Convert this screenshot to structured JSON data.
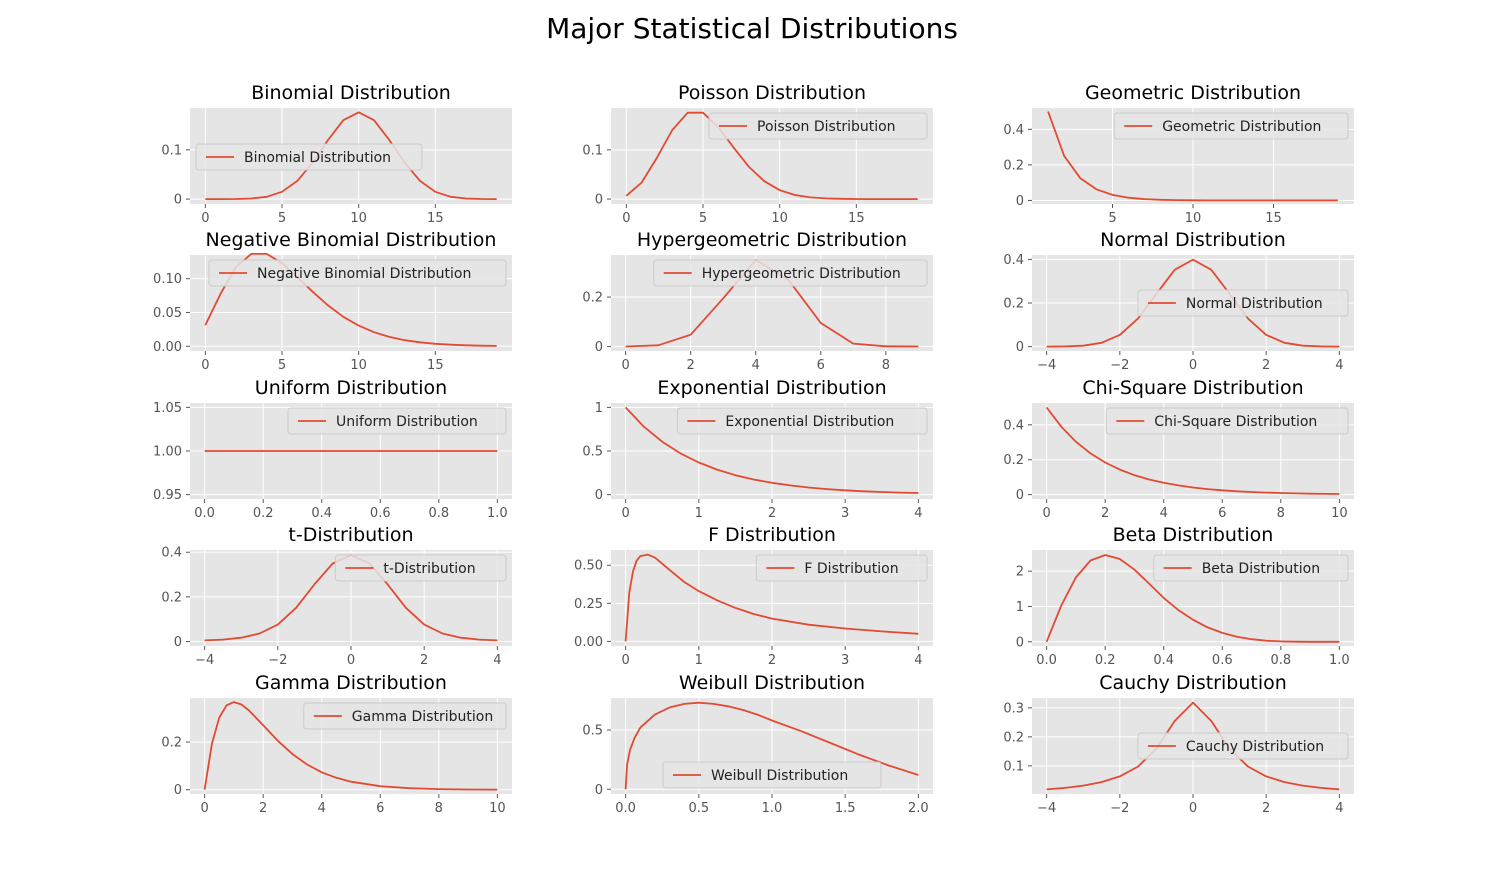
{
  "figure": {
    "title": "Major Statistical Distributions"
  },
  "style": {
    "panel_bg": "#e5e5e5",
    "grid": "#ffffff",
    "line": "#e24a33",
    "tick_text": "#555555",
    "legend_bg": "#e5e5e5",
    "legend_border": "#cccccc"
  },
  "chart_data": [
    {
      "type": "line",
      "title": "Binomial Distribution",
      "legend": "top-left",
      "xlim": [
        -1,
        20
      ],
      "ylim": [
        -0.01,
        0.185
      ],
      "xticks": [
        0,
        5,
        10,
        15
      ],
      "yticks": [
        0.0,
        0.1
      ],
      "series": [
        {
          "name": "Binomial Distribution",
          "x": [
            0,
            1,
            2,
            3,
            4,
            5,
            6,
            7,
            8,
            9,
            10,
            11,
            12,
            13,
            14,
            15,
            16,
            17,
            18,
            19
          ],
          "y": [
            0.0,
            0.0,
            0.0002,
            0.0011,
            0.0046,
            0.0148,
            0.037,
            0.0739,
            0.1201,
            0.1602,
            0.1762,
            0.1602,
            0.1201,
            0.0739,
            0.037,
            0.0148,
            0.0046,
            0.0011,
            0.0002,
            0.0
          ]
        }
      ]
    },
    {
      "type": "line",
      "title": "Poisson Distribution",
      "legend": "top-right",
      "xlim": [
        -1,
        20
      ],
      "ylim": [
        -0.01,
        0.185
      ],
      "xticks": [
        0,
        5,
        10,
        15
      ],
      "yticks": [
        0.0,
        0.1
      ],
      "series": [
        {
          "name": "Poisson Distribution",
          "x": [
            0,
            1,
            2,
            3,
            4,
            5,
            6,
            7,
            8,
            9,
            10,
            11,
            12,
            13,
            14,
            15,
            16,
            17,
            18,
            19
          ],
          "y": [
            0.0067,
            0.0337,
            0.0842,
            0.1404,
            0.1755,
            0.1755,
            0.1462,
            0.1044,
            0.0653,
            0.0363,
            0.0181,
            0.0082,
            0.0034,
            0.0013,
            0.0005,
            0.0002,
            0.0,
            0.0,
            0.0,
            0.0
          ]
        }
      ]
    },
    {
      "type": "line",
      "title": "Geometric Distribution",
      "legend": "top-right",
      "xlim": [
        0,
        20
      ],
      "ylim": [
        -0.02,
        0.52
      ],
      "xticks": [
        5,
        10,
        15
      ],
      "yticks": [
        0.0,
        0.2,
        0.4
      ],
      "series": [
        {
          "name": "Geometric Distribution",
          "x": [
            1,
            2,
            3,
            4,
            5,
            6,
            7,
            8,
            9,
            10,
            11,
            12,
            13,
            14,
            15,
            16,
            17,
            18,
            19
          ],
          "y": [
            0.5,
            0.25,
            0.125,
            0.0625,
            0.0313,
            0.0156,
            0.0078,
            0.0039,
            0.002,
            0.001,
            0.0005,
            0.0002,
            0.0001,
            0.0,
            0.0,
            0.0,
            0.0,
            0.0,
            0.0
          ]
        }
      ]
    },
    {
      "type": "line",
      "title": "Negative Binomial Distribution",
      "legend": "top-right",
      "xlim": [
        -1,
        20
      ],
      "ylim": [
        -0.007,
        0.135
      ],
      "xticks": [
        0,
        5,
        10,
        15
      ],
      "yticks": [
        0.0,
        0.05,
        0.1
      ],
      "ytick_labels": [
        "0.00",
        "0.05",
        "0.10"
      ],
      "series": [
        {
          "name": "Negative Binomial Distribution",
          "x": [
            0,
            1,
            2,
            3,
            4,
            5,
            6,
            7,
            8,
            9,
            10,
            11,
            12,
            13,
            14,
            15,
            16,
            17,
            18,
            19
          ],
          "y": [
            0.0312,
            0.0781,
            0.1172,
            0.1367,
            0.1367,
            0.123,
            0.1025,
            0.0806,
            0.0604,
            0.0436,
            0.0305,
            0.0208,
            0.0139,
            0.009,
            0.0058,
            0.0037,
            0.0023,
            0.0014,
            0.0009,
            0.0005
          ]
        }
      ]
    },
    {
      "type": "line",
      "title": "Hypergeometric Distribution",
      "legend": "top-right",
      "xlim": [
        -0.45,
        9.45
      ],
      "ylim": [
        -0.018,
        0.37
      ],
      "xticks": [
        0,
        2,
        4,
        6,
        8
      ],
      "yticks": [
        0.0,
        0.2
      ],
      "series": [
        {
          "name": "Hypergeometric Distribution",
          "x": [
            0,
            1,
            2,
            3,
            4,
            5,
            6,
            7,
            8,
            9
          ],
          "y": [
            0.0,
            0.005,
            0.048,
            0.195,
            0.35,
            0.27,
            0.095,
            0.012,
            0.001,
            0.0
          ]
        }
      ]
    },
    {
      "type": "line",
      "title": "Normal Distribution",
      "legend": "center-right",
      "xlim": [
        -4.4,
        4.4
      ],
      "ylim": [
        -0.02,
        0.42
      ],
      "xticks": [
        -4,
        -2,
        0,
        2,
        4
      ],
      "yticks": [
        0.0,
        0.2,
        0.4
      ],
      "xtick_labels": [
        "−4",
        "−2",
        "0",
        "2",
        "4"
      ],
      "series": [
        {
          "name": "Normal Distribution",
          "x": [
            -4,
            -3.5,
            -3,
            -2.5,
            -2,
            -1.5,
            -1,
            -0.5,
            0,
            0.5,
            1,
            1.5,
            2,
            2.5,
            3,
            3.5,
            4
          ],
          "y": [
            0.0001,
            0.0009,
            0.0044,
            0.0175,
            0.054,
            0.1295,
            0.242,
            0.3521,
            0.3989,
            0.3521,
            0.242,
            0.1295,
            0.054,
            0.0175,
            0.0044,
            0.0009,
            0.0001
          ]
        }
      ]
    },
    {
      "type": "line",
      "title": "Uniform Distribution",
      "legend": "top-right",
      "xlim": [
        -0.05,
        1.05
      ],
      "ylim": [
        0.945,
        1.055
      ],
      "xticks": [
        0,
        0.2,
        0.4,
        0.6,
        0.8,
        1
      ],
      "yticks": [
        0.95,
        1.0,
        1.05
      ],
      "xtick_labels": [
        "0.0",
        "0.2",
        "0.4",
        "0.6",
        "0.8",
        "1.0"
      ],
      "ytick_labels": [
        "0.95",
        "1.00",
        "1.05"
      ],
      "series": [
        {
          "name": "Uniform Distribution",
          "x": [
            0,
            1
          ],
          "y": [
            1,
            1
          ]
        }
      ]
    },
    {
      "type": "line",
      "title": "Exponential Distribution",
      "legend": "top-right",
      "xlim": [
        -0.2,
        4.2
      ],
      "ylim": [
        -0.05,
        1.05
      ],
      "xticks": [
        0,
        1,
        2,
        3,
        4
      ],
      "yticks": [
        0.0,
        0.5,
        1.0
      ],
      "series": [
        {
          "name": "Exponential Distribution",
          "x": [
            0,
            0.25,
            0.5,
            0.75,
            1,
            1.25,
            1.5,
            1.75,
            2,
            2.25,
            2.5,
            2.75,
            3,
            3.25,
            3.5,
            3.75,
            4
          ],
          "y": [
            1.0,
            0.7788,
            0.6065,
            0.4724,
            0.3679,
            0.2865,
            0.2231,
            0.1738,
            0.1353,
            0.1054,
            0.0821,
            0.0639,
            0.0498,
            0.0388,
            0.0302,
            0.0235,
            0.0183
          ]
        }
      ]
    },
    {
      "type": "line",
      "title": "Chi-Square Distribution",
      "legend": "top-right",
      "xlim": [
        -0.5,
        10.5
      ],
      "ylim": [
        -0.025,
        0.525
      ],
      "xticks": [
        0,
        2,
        4,
        6,
        8,
        10
      ],
      "yticks": [
        0.0,
        0.2,
        0.4
      ],
      "series": [
        {
          "name": "Chi-Square Distribution",
          "x": [
            0,
            0.5,
            1,
            1.5,
            2,
            2.5,
            3,
            3.5,
            4,
            4.5,
            5,
            5.5,
            6,
            6.5,
            7,
            7.5,
            8,
            8.5,
            9,
            9.5,
            10
          ],
          "y": [
            0.5,
            0.3894,
            0.3033,
            0.2362,
            0.1839,
            0.1433,
            0.1116,
            0.0869,
            0.0677,
            0.0527,
            0.041,
            0.032,
            0.0249,
            0.0194,
            0.0151,
            0.0118,
            0.0092,
            0.0071,
            0.0056,
            0.0043,
            0.0034
          ]
        }
      ]
    },
    {
      "type": "line",
      "title": "t-Distribution",
      "legend": "top-right",
      "xlim": [
        -4.4,
        4.4
      ],
      "ylim": [
        -0.02,
        0.41
      ],
      "xticks": [
        -4,
        -2,
        0,
        2,
        4
      ],
      "yticks": [
        0.0,
        0.2,
        0.4
      ],
      "xtick_labels": [
        "−4",
        "−2",
        "0",
        "2",
        "4"
      ],
      "series": [
        {
          "name": "t-Distribution",
          "x": [
            -4,
            -3.5,
            -3,
            -2.5,
            -2,
            -1.5,
            -1,
            -0.5,
            0,
            0.5,
            1,
            1.5,
            2,
            2.5,
            3,
            3.5,
            4
          ],
          "y": [
            0.0051,
            0.0087,
            0.0173,
            0.0361,
            0.0759,
            0.1513,
            0.2561,
            0.3495,
            0.3873,
            0.3495,
            0.2561,
            0.1513,
            0.0759,
            0.0361,
            0.0173,
            0.0087,
            0.0051
          ]
        }
      ]
    },
    {
      "type": "line",
      "title": "F Distribution",
      "legend": "top-right",
      "xlim": [
        -0.2,
        4.2
      ],
      "ylim": [
        -0.03,
        0.6
      ],
      "xticks": [
        0,
        1,
        2,
        3,
        4
      ],
      "yticks": [
        0.0,
        0.25,
        0.5
      ],
      "ytick_labels": [
        "0.00",
        "0.25",
        "0.50"
      ],
      "series": [
        {
          "name": "F Distribution",
          "x": [
            0,
            0.05,
            0.1,
            0.15,
            0.2,
            0.3,
            0.4,
            0.5,
            0.6,
            0.8,
            1,
            1.25,
            1.5,
            1.75,
            2,
            2.5,
            3,
            3.5,
            4
          ],
          "y": [
            0,
            0.32,
            0.46,
            0.53,
            0.56,
            0.57,
            0.55,
            0.51,
            0.47,
            0.39,
            0.33,
            0.27,
            0.22,
            0.18,
            0.15,
            0.11,
            0.085,
            0.066,
            0.05
          ]
        }
      ]
    },
    {
      "type": "line",
      "title": "Beta Distribution",
      "legend": "top-right",
      "xlim": [
        -0.05,
        1.05
      ],
      "ylim": [
        -0.12,
        2.6
      ],
      "xticks": [
        0,
        0.2,
        0.4,
        0.6,
        0.8,
        1
      ],
      "yticks": [
        0,
        1,
        2
      ],
      "xtick_labels": [
        "0.0",
        "0.2",
        "0.4",
        "0.6",
        "0.8",
        "1.0"
      ],
      "series": [
        {
          "name": "Beta Distribution",
          "x": [
            0,
            0.05,
            0.1,
            0.15,
            0.2,
            0.25,
            0.3,
            0.35,
            0.4,
            0.45,
            0.5,
            0.55,
            0.6,
            0.65,
            0.7,
            0.75,
            0.8,
            0.85,
            0.9,
            0.95,
            1
          ],
          "y": [
            0,
            1.0288,
            1.8225,
            2.303,
            2.4576,
            2.3438,
            2.0412,
            1.6479,
            1.2442,
            0.8985,
            0.625,
            0.4084,
            0.2519,
            0.1436,
            0.0729,
            0.0312,
            0.0101,
            0.002,
            0.0001,
            0.0,
            0
          ]
        }
      ]
    },
    {
      "type": "line",
      "title": "Gamma Distribution",
      "legend": "top-right",
      "xlim": [
        -0.5,
        10.5
      ],
      "ylim": [
        -0.018,
        0.385
      ],
      "xticks": [
        0,
        2,
        4,
        6,
        8,
        10
      ],
      "yticks": [
        0.0,
        0.2
      ],
      "series": [
        {
          "name": "Gamma Distribution",
          "x": [
            0,
            0.25,
            0.5,
            0.75,
            1,
            1.25,
            1.5,
            2,
            2.5,
            3,
            3.5,
            4,
            4.5,
            5,
            6,
            7,
            8,
            9,
            10
          ],
          "y": [
            0,
            0.1947,
            0.3033,
            0.3543,
            0.3679,
            0.3581,
            0.3347,
            0.2707,
            0.2052,
            0.1494,
            0.1057,
            0.0733,
            0.05,
            0.0337,
            0.0149,
            0.0064,
            0.0027,
            0.0011,
            0.0005
          ]
        }
      ]
    },
    {
      "type": "line",
      "title": "Weibull Distribution",
      "legend": "bottom-center",
      "xlim": [
        -0.1,
        2.1
      ],
      "ylim": [
        -0.04,
        0.77
      ],
      "xticks": [
        0,
        0.5,
        1,
        1.5,
        2
      ],
      "yticks": [
        0.0,
        0.5
      ],
      "xtick_labels": [
        "0.0",
        "0.5",
        "1.0",
        "1.5",
        "2.0"
      ],
      "series": [
        {
          "name": "Weibull Distribution",
          "x": [
            0,
            0.01,
            0.03,
            0.06,
            0.1,
            0.2,
            0.3,
            0.4,
            0.5,
            0.6,
            0.7,
            0.8,
            0.9,
            1,
            1.2,
            1.4,
            1.6,
            1.8,
            2
          ],
          "y": [
            0,
            0.21,
            0.33,
            0.43,
            0.52,
            0.63,
            0.69,
            0.72,
            0.73,
            0.72,
            0.7,
            0.67,
            0.63,
            0.58,
            0.49,
            0.39,
            0.29,
            0.2,
            0.12
          ]
        }
      ]
    },
    {
      "type": "line",
      "title": "Cauchy Distribution",
      "legend": "center-right",
      "xlim": [
        -4.4,
        4.4
      ],
      "ylim": [
        0.003,
        0.334
      ],
      "xticks": [
        -4,
        -2,
        0,
        2,
        4
      ],
      "yticks": [
        0.1,
        0.2,
        0.3
      ],
      "xtick_labels": [
        "−4",
        "−2",
        "0",
        "2",
        "4"
      ],
      "series": [
        {
          "name": "Cauchy Distribution",
          "x": [
            -4,
            -3.5,
            -3,
            -2.5,
            -2,
            -1.5,
            -1,
            -0.5,
            0,
            0.5,
            1,
            1.5,
            2,
            2.5,
            3,
            3.5,
            4
          ],
          "y": [
            0.0187,
            0.024,
            0.0318,
            0.0439,
            0.0637,
            0.0979,
            0.1592,
            0.2546,
            0.3183,
            0.2546,
            0.1592,
            0.0979,
            0.0637,
            0.0439,
            0.0318,
            0.024,
            0.0187
          ]
        }
      ]
    }
  ]
}
